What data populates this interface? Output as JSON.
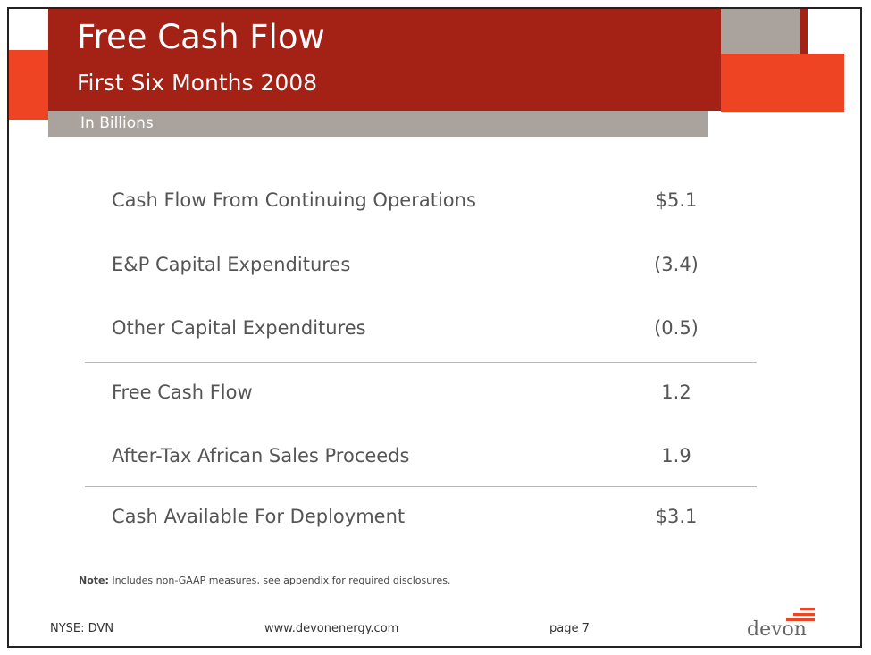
{
  "header": {
    "title": "Free Cash Flow",
    "subtitle": "First Six Months 2008",
    "units": "In Billions"
  },
  "rows": [
    {
      "label": "Cash Flow From Continuing Operations",
      "value": "$5.1"
    },
    {
      "label": "E&P Capital Expenditures",
      "value": "(3.4)"
    },
    {
      "label": "Other Capital Expenditures",
      "value": "(0.5)"
    },
    {
      "label": "Free Cash Flow",
      "value": "1.2"
    },
    {
      "label": "After-Tax African Sales Proceeds",
      "value": "1.9"
    },
    {
      "label": "Cash Available For Deployment",
      "value": "$3.1"
    }
  ],
  "note": {
    "prefix": "Note:",
    "text": " Includes non-GAAP measures, see appendix for required disclosures."
  },
  "footer": {
    "ticker": "NYSE: DVN",
    "website": "www.devonenergy.com",
    "page": "page 7",
    "logo_text": "devon"
  },
  "colors": {
    "brand_red": "#a32115",
    "brand_orange": "#ee4423",
    "accent_gray": "#aaa39d"
  }
}
